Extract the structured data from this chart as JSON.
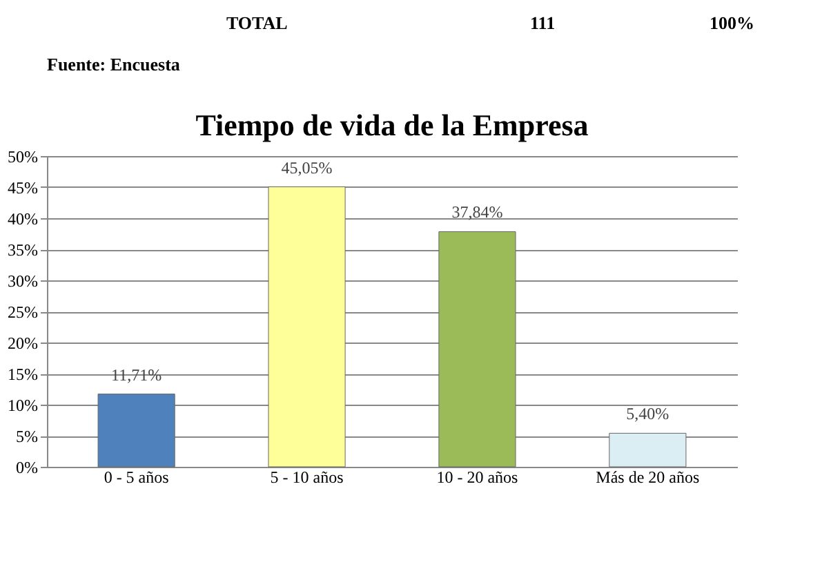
{
  "chart_data": {
    "type": "bar",
    "title": "Tiempo de vida de la Empresa",
    "categories": [
      "0 - 5 años",
      "5 - 10 años",
      "10 - 20 años",
      "Más de 20 años"
    ],
    "values": [
      11.71,
      45.05,
      37.84,
      5.4
    ],
    "colors": [
      "#4f81bd",
      "#ffff99",
      "#9bbb59",
      "#dbeef4"
    ],
    "value_labels": [
      "11,71%",
      "45,05%",
      "37,84%",
      "5,40%"
    ],
    "ylim": [
      0,
      50
    ],
    "yticks": [
      {
        "value": 0,
        "label": "0%"
      },
      {
        "value": 5,
        "label": "5%"
      },
      {
        "value": 10,
        "label": "10%"
      },
      {
        "value": 15,
        "label": "15%"
      },
      {
        "value": 20,
        "label": "20%"
      },
      {
        "value": 25,
        "label": "25%"
      },
      {
        "value": 30,
        "label": "30%"
      },
      {
        "value": 35,
        "label": "35%"
      },
      {
        "value": 40,
        "label": "40%"
      },
      {
        "value": 45,
        "label": "45%"
      },
      {
        "value": 50,
        "label": "50%"
      }
    ],
    "grid": "y",
    "annotations": [
      "TOTAL",
      "111",
      "100%",
      "Fuente: Encuesta"
    ]
  }
}
